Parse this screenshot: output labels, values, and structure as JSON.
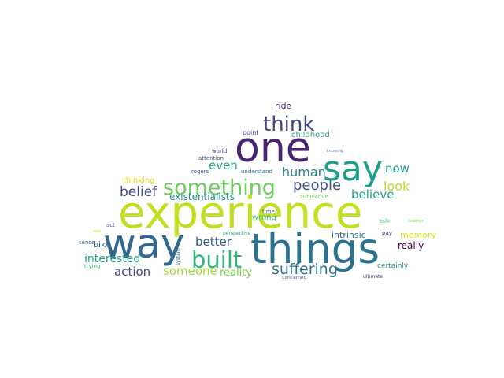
{
  "words": [
    {
      "text": "experience",
      "color": "#c2df23"
    },
    {
      "text": "one",
      "color": "#482475"
    },
    {
      "text": "things",
      "color": "#2c728e"
    },
    {
      "text": "way",
      "color": "#31688e"
    },
    {
      "text": "say",
      "color": "#1f9e89"
    },
    {
      "text": "think",
      "color": "#414487"
    },
    {
      "text": "something",
      "color": "#6ccd5a"
    },
    {
      "text": "built",
      "color": "#35b779"
    },
    {
      "text": "suffering",
      "color": "#2a788e"
    },
    {
      "text": "people",
      "color": "#3b528b"
    },
    {
      "text": "human",
      "color": "#26828e"
    },
    {
      "text": "belief",
      "color": "#3e4989"
    },
    {
      "text": "look",
      "color": "#b5de2b"
    },
    {
      "text": "believe",
      "color": "#1fa187"
    },
    {
      "text": "now",
      "color": "#1f988b"
    },
    {
      "text": "even",
      "color": "#27ad81"
    },
    {
      "text": "better",
      "color": "#375a8c"
    },
    {
      "text": "someone",
      "color": "#a0da39"
    },
    {
      "text": "action",
      "color": "#3f4788"
    },
    {
      "text": "interested",
      "color": "#20a386"
    },
    {
      "text": "reality",
      "color": "#7ad151"
    },
    {
      "text": "memory",
      "color": "#d8e219"
    },
    {
      "text": "really",
      "color": "#440154"
    },
    {
      "text": "intrinsic",
      "color": "#2d708e"
    },
    {
      "text": "existentialists",
      "color": "#228c8d"
    },
    {
      "text": "wrong",
      "color": "#4ac16d"
    },
    {
      "text": "ride",
      "color": "#482878"
    },
    {
      "text": "childhood",
      "color": "#3e9a83"
    },
    {
      "text": "thinking",
      "color": "#dde318"
    },
    {
      "text": "bike",
      "color": "#30698e"
    },
    {
      "text": "point",
      "color": "#433e85"
    },
    {
      "text": "certainly",
      "color": "#21908d"
    },
    {
      "text": "world",
      "color": "#46337e"
    },
    {
      "text": "attention",
      "color": "#3b518b"
    },
    {
      "text": "understand",
      "color": "#2e6f8e"
    },
    {
      "text": "rogers",
      "color": "#3d4e8a"
    },
    {
      "text": "knowing",
      "color": "#5c7ca8"
    },
    {
      "text": "subjective",
      "color": "#74d055"
    },
    {
      "text": "time",
      "color": "#3a548c"
    },
    {
      "text": "act",
      "color": "#3a548c"
    },
    {
      "text": "talk",
      "color": "#3aba76"
    },
    {
      "text": "another",
      "color": "#86d549"
    },
    {
      "text": "pay",
      "color": "#472c7a"
    },
    {
      "text": "perspective",
      "color": "#25ac82"
    },
    {
      "text": "system",
      "color": "#2e6e8e"
    },
    {
      "text": "sense",
      "color": "#2c728e"
    },
    {
      "text": "use",
      "color": "#c8e020"
    },
    {
      "text": "trying",
      "color": "#42be71"
    },
    {
      "text": "concerned",
      "color": "#3e4a89"
    },
    {
      "text": "ultimate",
      "color": "#414487"
    }
  ]
}
